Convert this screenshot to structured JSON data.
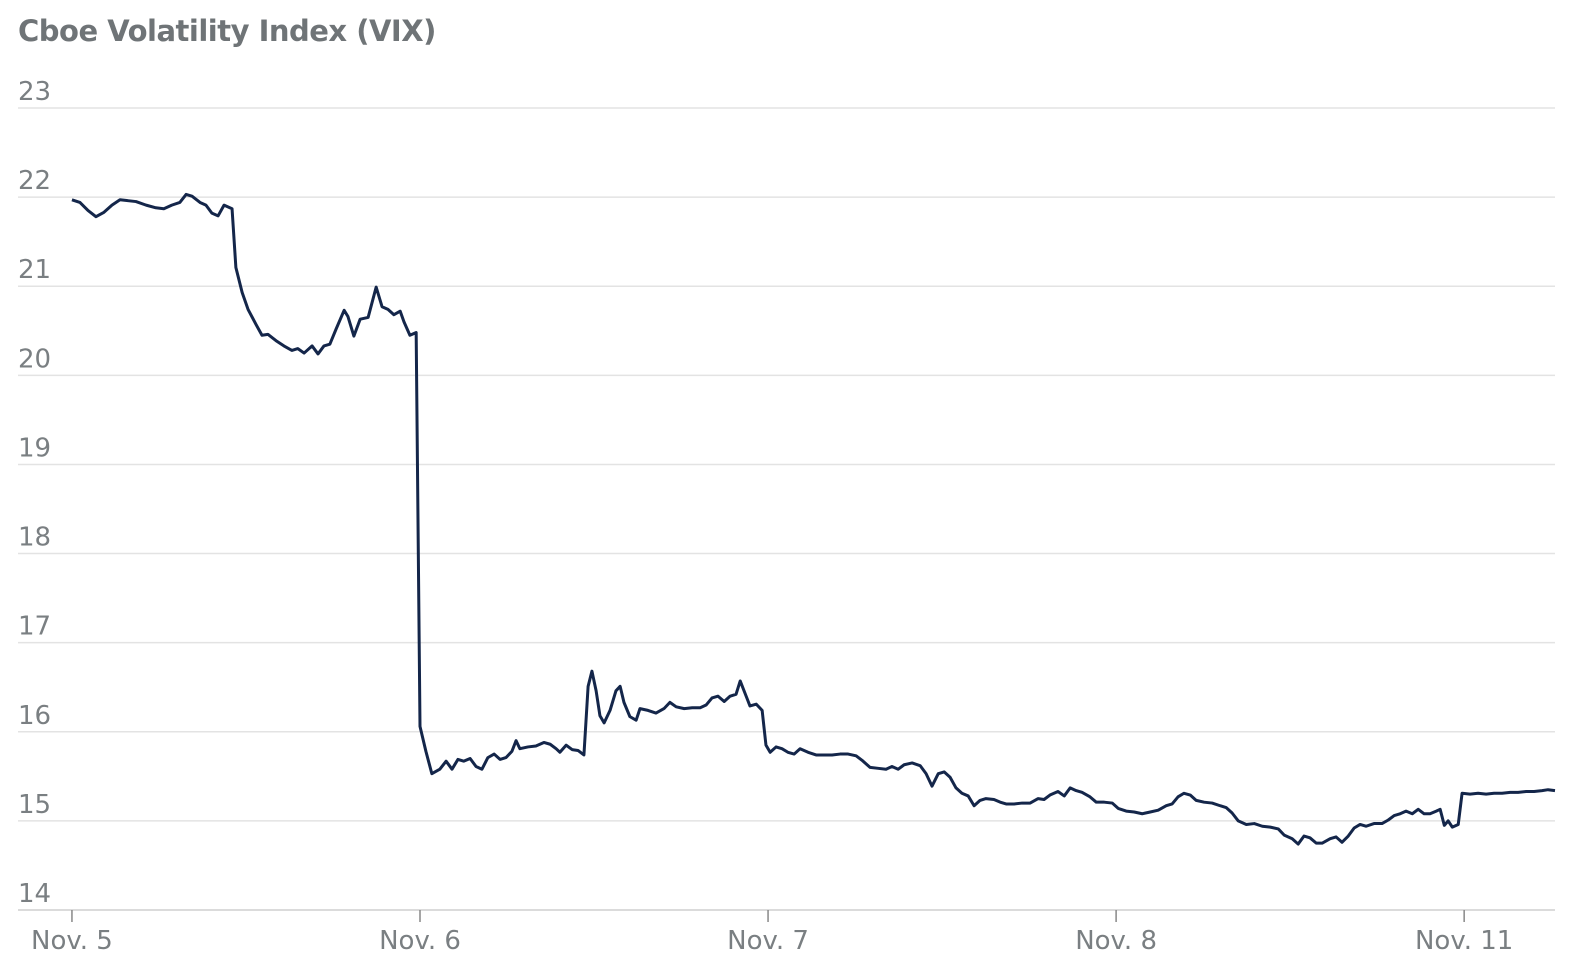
{
  "chart_data": {
    "type": "line",
    "title": "Cboe Volatility Index (VIX)",
    "x": [
      0,
      0.023,
      0.046,
      0.069,
      0.092,
      0.115,
      0.138,
      0.161,
      0.184,
      0.213,
      0.241,
      0.264,
      0.287,
      0.31,
      0.328,
      0.345,
      0.368,
      0.385,
      0.402,
      0.42,
      0.437,
      0.46,
      0.471,
      0.489,
      0.506,
      0.529,
      0.546,
      0.563,
      0.586,
      0.609,
      0.632,
      0.649,
      0.667,
      0.69,
      0.707,
      0.724,
      0.741,
      0.759,
      0.782,
      0.793,
      0.81,
      0.828,
      0.851,
      0.874,
      0.891,
      0.908,
      0.925,
      0.943,
      0.954,
      0.971,
      0.989,
      1.0,
      1.017,
      1.034,
      1.057,
      1.075,
      1.092,
      1.109,
      1.126,
      1.144,
      1.161,
      1.178,
      1.195,
      1.213,
      1.23,
      1.247,
      1.264,
      1.276,
      1.287,
      1.31,
      1.333,
      1.356,
      1.374,
      1.391,
      1.402,
      1.42,
      1.437,
      1.454,
      1.471,
      1.483,
      1.494,
      1.506,
      1.517,
      1.529,
      1.546,
      1.563,
      1.575,
      1.586,
      1.603,
      1.621,
      1.632,
      1.655,
      1.678,
      1.701,
      1.718,
      1.736,
      1.759,
      1.782,
      1.805,
      1.822,
      1.839,
      1.856,
      1.874,
      1.891,
      1.908,
      1.92,
      1.937,
      1.948,
      1.966,
      1.983,
      1.994,
      2.006,
      2.023,
      2.04,
      2.057,
      2.075,
      2.092,
      2.115,
      2.138,
      2.161,
      2.184,
      2.207,
      2.23,
      2.253,
      2.27,
      2.293,
      2.316,
      2.339,
      2.356,
      2.374,
      2.391,
      2.414,
      2.437,
      2.454,
      2.471,
      2.489,
      2.506,
      2.523,
      2.54,
      2.557,
      2.575,
      2.592,
      2.609,
      2.626,
      2.649,
      2.667,
      2.684,
      2.707,
      2.73,
      2.753,
      2.776,
      2.793,
      2.81,
      2.833,
      2.851,
      2.868,
      2.885,
      2.902,
      2.925,
      2.943,
      2.966,
      2.989,
      3.006,
      3.029,
      3.052,
      3.075,
      3.098,
      3.121,
      3.144,
      3.161,
      3.178,
      3.195,
      3.213,
      3.23,
      3.253,
      3.276,
      3.299,
      3.316,
      3.333,
      3.351,
      3.374,
      3.397,
      3.42,
      3.443,
      3.466,
      3.483,
      3.506,
      3.523,
      3.54,
      3.557,
      3.575,
      3.592,
      3.615,
      3.632,
      3.649,
      3.667,
      3.684,
      3.701,
      3.718,
      3.741,
      3.764,
      3.782,
      3.799,
      3.816,
      3.833,
      3.851,
      3.868,
      3.885,
      3.902,
      3.92,
      3.931,
      3.943,
      3.954,
      3.966,
      3.983,
      3.994,
      4.017,
      4.04,
      4.063,
      4.086,
      4.109,
      4.132,
      4.155,
      4.178,
      4.201,
      4.224,
      4.241,
      4.261
    ],
    "series": [
      {
        "color": "#14264a",
        "values": [
          21.97,
          21.94,
          21.85,
          21.78,
          21.83,
          21.91,
          21.97,
          21.96,
          21.95,
          21.91,
          21.88,
          21.87,
          21.91,
          21.94,
          22.03,
          22.01,
          21.94,
          21.91,
          21.82,
          21.79,
          21.91,
          21.87,
          21.21,
          20.93,
          20.74,
          20.57,
          20.45,
          20.46,
          20.39,
          20.33,
          20.28,
          20.3,
          20.25,
          20.33,
          20.24,
          20.33,
          20.35,
          20.52,
          20.73,
          20.66,
          20.44,
          20.63,
          20.65,
          20.99,
          20.77,
          20.74,
          20.68,
          20.72,
          20.6,
          20.45,
          20.48,
          16.06,
          15.78,
          15.53,
          15.58,
          15.67,
          15.58,
          15.69,
          15.67,
          15.7,
          15.61,
          15.58,
          15.71,
          15.75,
          15.69,
          15.71,
          15.78,
          15.9,
          15.81,
          15.83,
          15.84,
          15.88,
          15.86,
          15.81,
          15.77,
          15.85,
          15.8,
          15.79,
          15.74,
          16.51,
          16.68,
          16.46,
          16.18,
          16.1,
          16.24,
          16.46,
          16.51,
          16.33,
          16.17,
          16.13,
          16.26,
          16.24,
          16.21,
          16.26,
          16.33,
          16.28,
          16.26,
          16.27,
          16.27,
          16.3,
          16.38,
          16.4,
          16.34,
          16.4,
          16.42,
          16.57,
          16.4,
          16.29,
          16.31,
          16.24,
          15.85,
          15.77,
          15.83,
          15.81,
          15.77,
          15.75,
          15.81,
          15.77,
          15.74,
          15.74,
          15.74,
          15.75,
          15.75,
          15.73,
          15.68,
          15.6,
          15.59,
          15.58,
          15.61,
          15.58,
          15.63,
          15.65,
          15.62,
          15.53,
          15.39,
          15.53,
          15.55,
          15.49,
          15.37,
          15.31,
          15.28,
          15.17,
          15.23,
          15.25,
          15.24,
          15.21,
          15.19,
          15.19,
          15.2,
          15.2,
          15.25,
          15.24,
          15.29,
          15.33,
          15.28,
          15.37,
          15.34,
          15.32,
          15.27,
          15.21,
          15.21,
          15.2,
          15.14,
          15.11,
          15.1,
          15.08,
          15.1,
          15.12,
          15.17,
          15.19,
          15.27,
          15.31,
          15.29,
          15.23,
          15.21,
          15.2,
          15.17,
          15.15,
          15.09,
          15.0,
          14.96,
          14.97,
          14.94,
          14.93,
          14.91,
          14.84,
          14.8,
          14.74,
          14.83,
          14.81,
          14.75,
          14.75,
          14.8,
          14.82,
          14.76,
          14.83,
          14.92,
          14.96,
          14.94,
          14.97,
          14.97,
          15.01,
          15.06,
          15.08,
          15.11,
          15.08,
          15.13,
          15.08,
          15.08,
          15.11,
          15.13,
          14.95,
          15.0,
          14.93,
          14.96,
          15.31,
          15.3,
          15.31,
          15.3,
          15.31,
          15.31,
          15.32,
          15.32,
          15.33,
          15.33,
          15.34,
          15.35,
          15.34
        ]
      }
    ],
    "xlim": [
      -0.155,
      4.261
    ],
    "xticks": [
      {
        "value": 0,
        "label": "Nov. 5"
      },
      {
        "value": 1,
        "label": "Nov. 6"
      },
      {
        "value": 2,
        "label": "Nov. 7"
      },
      {
        "value": 3,
        "label": "Nov. 8"
      },
      {
        "value": 4,
        "label": "Nov. 11"
      }
    ],
    "ylim": [
      14,
      23
    ],
    "yticks": [
      14,
      15,
      16,
      17,
      18,
      19,
      20,
      21,
      22,
      23
    ],
    "grid": true
  }
}
